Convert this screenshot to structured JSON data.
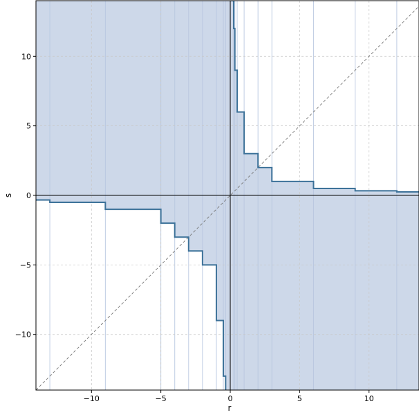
{
  "chart_data": {
    "type": "area",
    "title": "",
    "xlabel": "r",
    "ylabel": "s",
    "xlim": [
      -14,
      13.6
    ],
    "ylim": [
      -14,
      14
    ],
    "grid": true,
    "x_ticks": [
      -10,
      -5,
      0,
      5,
      10
    ],
    "y_ticks": [
      -10,
      -5,
      0,
      5,
      10
    ],
    "x_tick_labels": [
      "−10",
      "−5",
      "0",
      "5",
      "10"
    ],
    "y_tick_labels": [
      "−10",
      "−5",
      "0",
      "5",
      "10"
    ],
    "reference_line": {
      "type": "diagonal",
      "equation": "s = r"
    },
    "colors": {
      "fill": "#b8c7e0",
      "boundary": "#3d7299",
      "grid": "#c8c8c8",
      "reference": "#777777",
      "axes": "#000000"
    },
    "boundary_right": [
      {
        "x": 0.074,
        "y": 14
      },
      {
        "x": 0.25,
        "y": 14
      },
      {
        "x": 0.25,
        "y": 12
      },
      {
        "x": 0.333,
        "y": 12
      },
      {
        "x": 0.333,
        "y": 9
      },
      {
        "x": 0.5,
        "y": 9
      },
      {
        "x": 0.5,
        "y": 6
      },
      {
        "x": 1,
        "y": 6
      },
      {
        "x": 1,
        "y": 3
      },
      {
        "x": 2,
        "y": 3
      },
      {
        "x": 2,
        "y": 2
      },
      {
        "x": 3,
        "y": 2
      },
      {
        "x": 3,
        "y": 1
      },
      {
        "x": 6,
        "y": 1
      },
      {
        "x": 6,
        "y": 0.5
      },
      {
        "x": 9,
        "y": 0.5
      },
      {
        "x": 9,
        "y": 0.333
      },
      {
        "x": 12,
        "y": 0.333
      },
      {
        "x": 12,
        "y": 0.25
      },
      {
        "x": 13.6,
        "y": 0.25
      }
    ],
    "boundary_left": [
      {
        "x": -14,
        "y": -0.333
      },
      {
        "x": -13,
        "y": -0.333
      },
      {
        "x": -13,
        "y": -0.5
      },
      {
        "x": -9,
        "y": -0.5
      },
      {
        "x": -9,
        "y": -1
      },
      {
        "x": -5,
        "y": -1
      },
      {
        "x": -5,
        "y": -2
      },
      {
        "x": -4,
        "y": -2
      },
      {
        "x": -4,
        "y": -3
      },
      {
        "x": -3,
        "y": -3
      },
      {
        "x": -3,
        "y": -4
      },
      {
        "x": -2,
        "y": -4
      },
      {
        "x": -2,
        "y": -5
      },
      {
        "x": -1,
        "y": -5
      },
      {
        "x": -1,
        "y": -9
      },
      {
        "x": -0.5,
        "y": -9
      },
      {
        "x": -0.5,
        "y": -13
      },
      {
        "x": -0.333,
        "y": -13
      },
      {
        "x": -0.333,
        "y": -14
      }
    ],
    "step_lines_x": [
      -13,
      -9,
      -5,
      -4,
      -3,
      -2,
      -1,
      -0.5,
      -0.333,
      0.25,
      0.333,
      0.5,
      1,
      2,
      3,
      6,
      9,
      12
    ]
  }
}
